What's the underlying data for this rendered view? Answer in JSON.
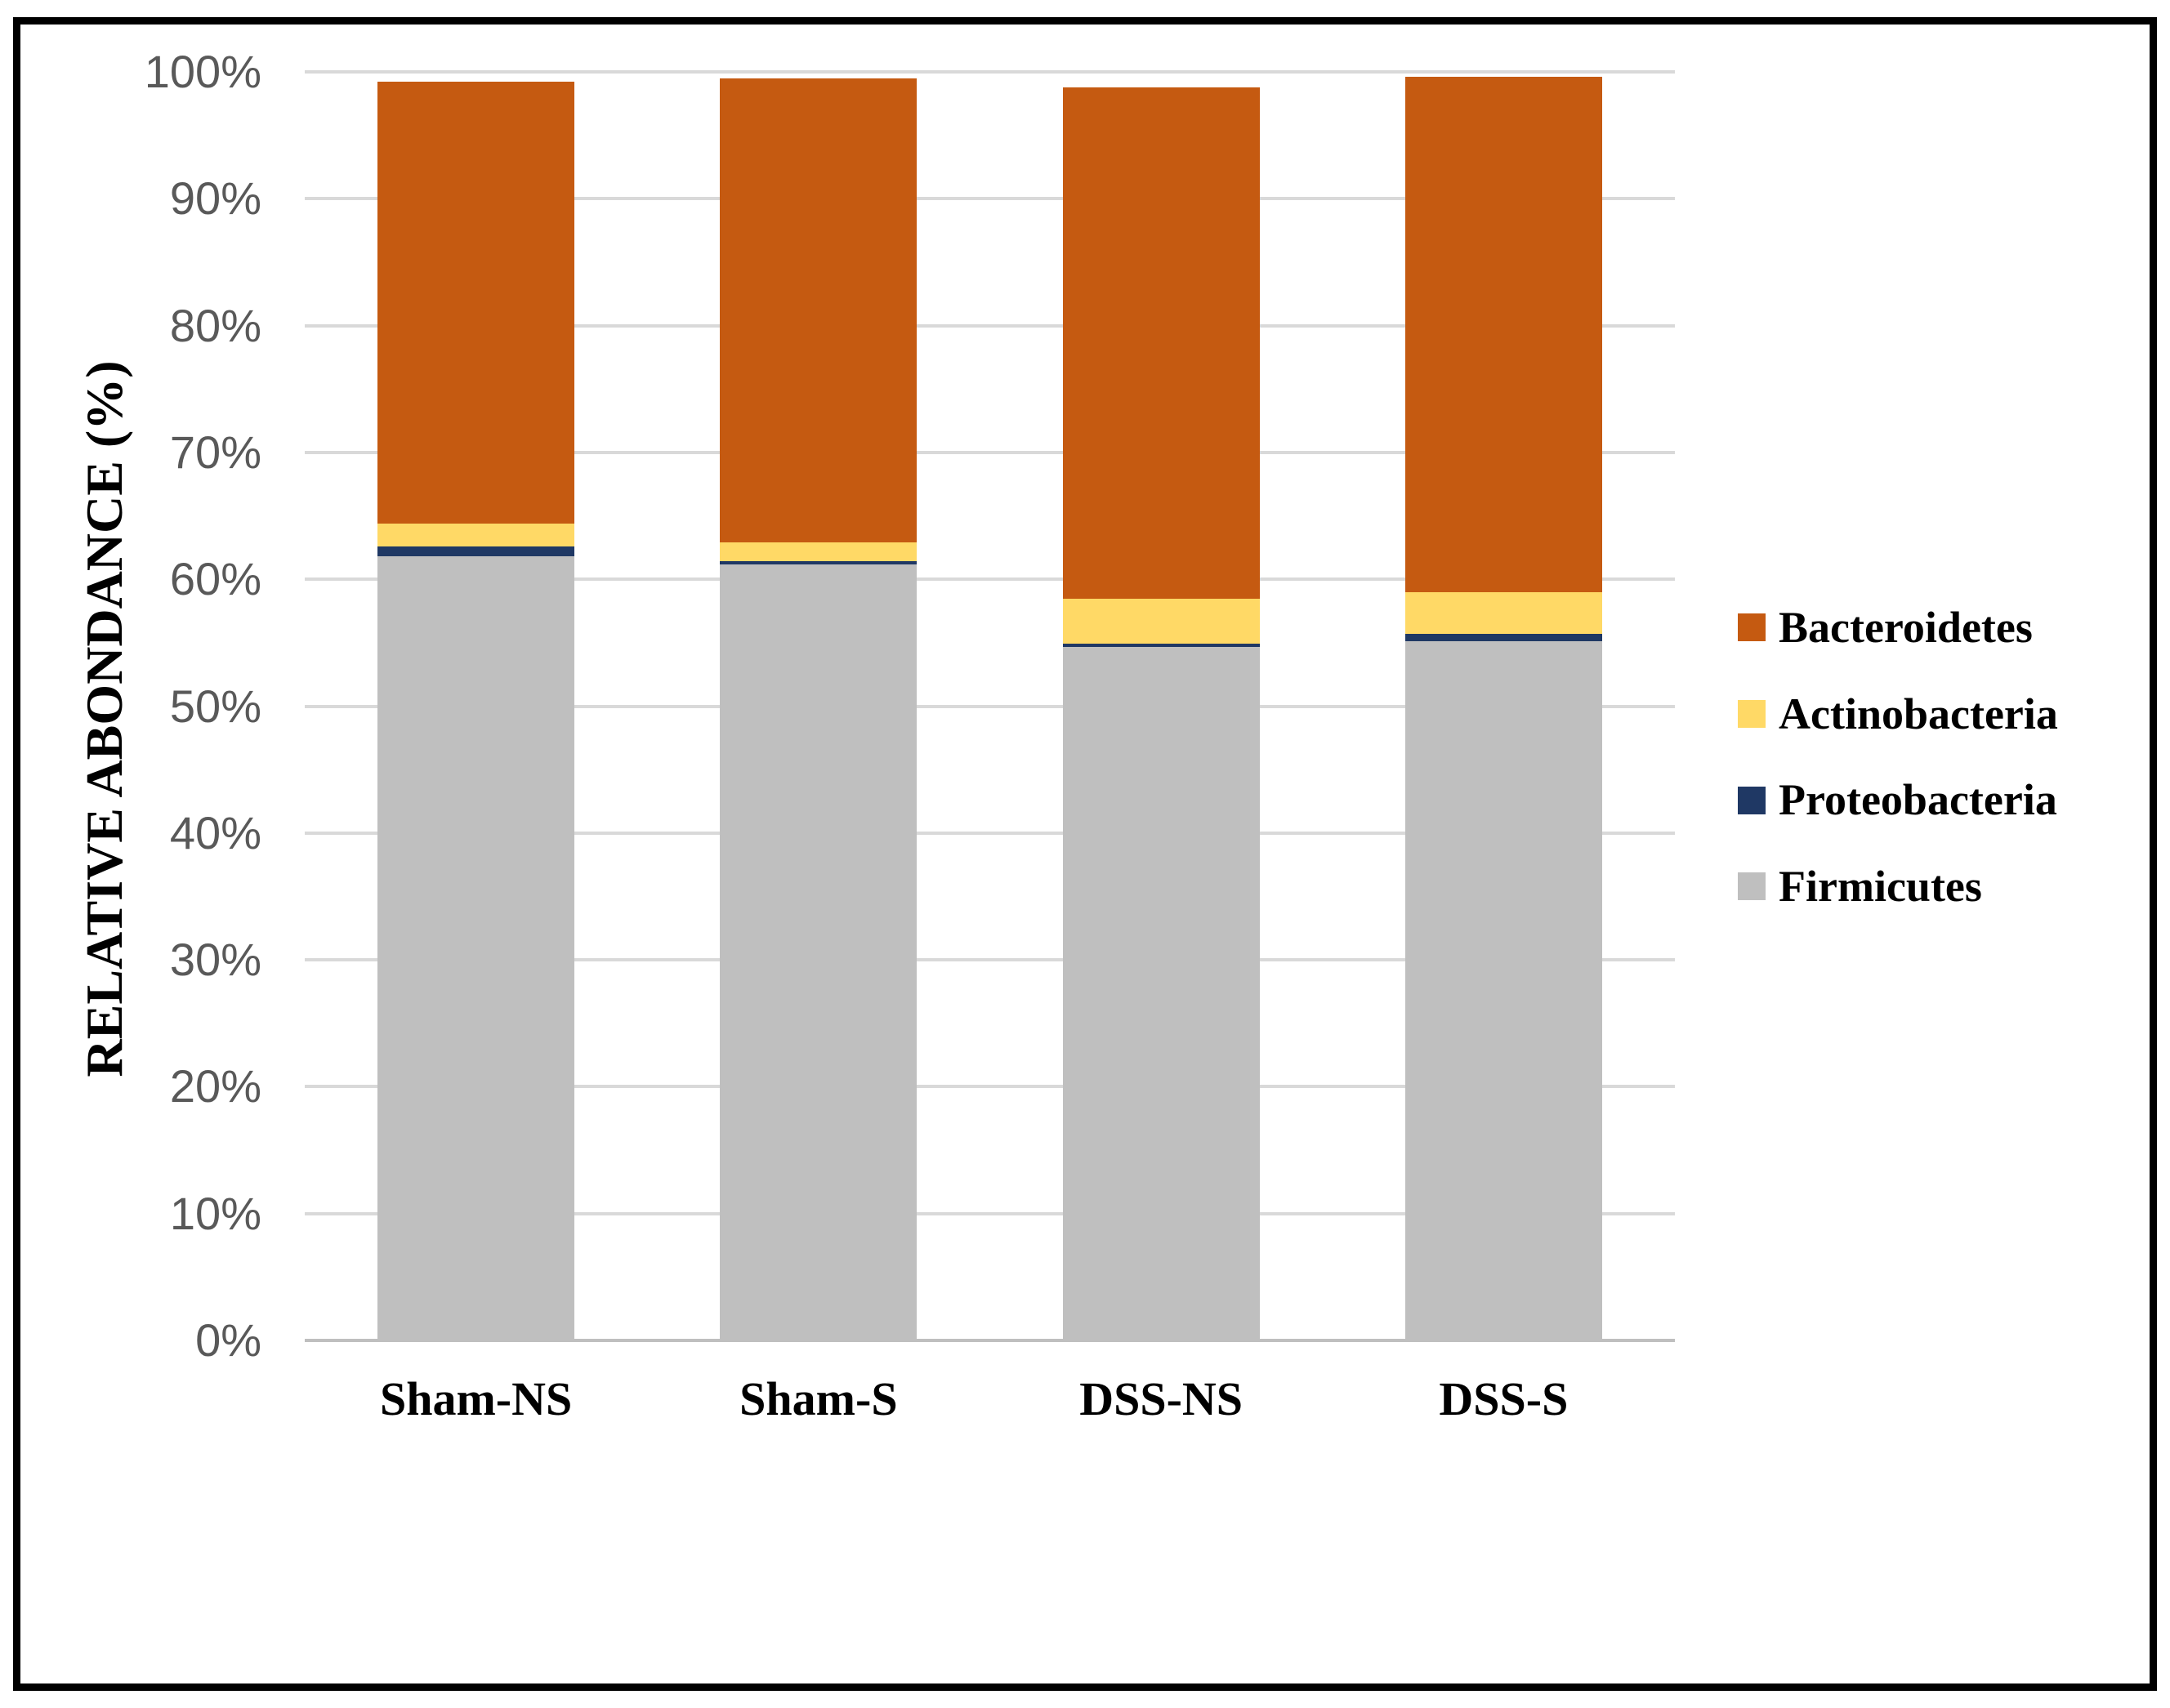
{
  "chart_data": {
    "type": "bar",
    "stacked": true,
    "ylabel": "RELATIVE ABONDANCE (%)",
    "categories": [
      "Sham-NS",
      "Sham-S",
      "DSS-NS",
      "DSS-S"
    ],
    "series": [
      {
        "name": "Firmicutes",
        "color": "#BFBFBF",
        "values": [
          61.8,
          61.2,
          54.7,
          55.1
        ]
      },
      {
        "name": "Proteobacteria",
        "color": "#1F3864",
        "values": [
          0.8,
          0.2,
          0.2,
          0.6
        ]
      },
      {
        "name": "Actinobacteria",
        "color": "#FFD966",
        "values": [
          1.8,
          1.5,
          3.6,
          3.3
        ]
      },
      {
        "name": "Bacteroidetes",
        "color": "#C55A11",
        "values": [
          34.8,
          36.6,
          40.3,
          40.6
        ]
      }
    ],
    "bar_totals": [
      99.2,
      99.5,
      98.8,
      99.6
    ],
    "ylim": [
      0,
      100
    ],
    "ytick_values": [
      0,
      10,
      20,
      30,
      40,
      50,
      60,
      70,
      80,
      90,
      100
    ],
    "yticks": [
      "0%",
      "10%",
      "20%",
      "30%",
      "40%",
      "50%",
      "60%",
      "70%",
      "80%",
      "90%",
      "100%"
    ],
    "grid": true,
    "legend_position": "right",
    "legend_order": [
      "Bacteroidetes",
      "Actinobacteria",
      "Proteobacteria",
      "Firmicutes"
    ]
  },
  "colors": {
    "gridline": "#D9D9D9",
    "axis_line": "#BFBFBF",
    "tick_label": "#595959",
    "text": "#000000",
    "frame_border": "#000000",
    "background": "#FFFFFF"
  }
}
